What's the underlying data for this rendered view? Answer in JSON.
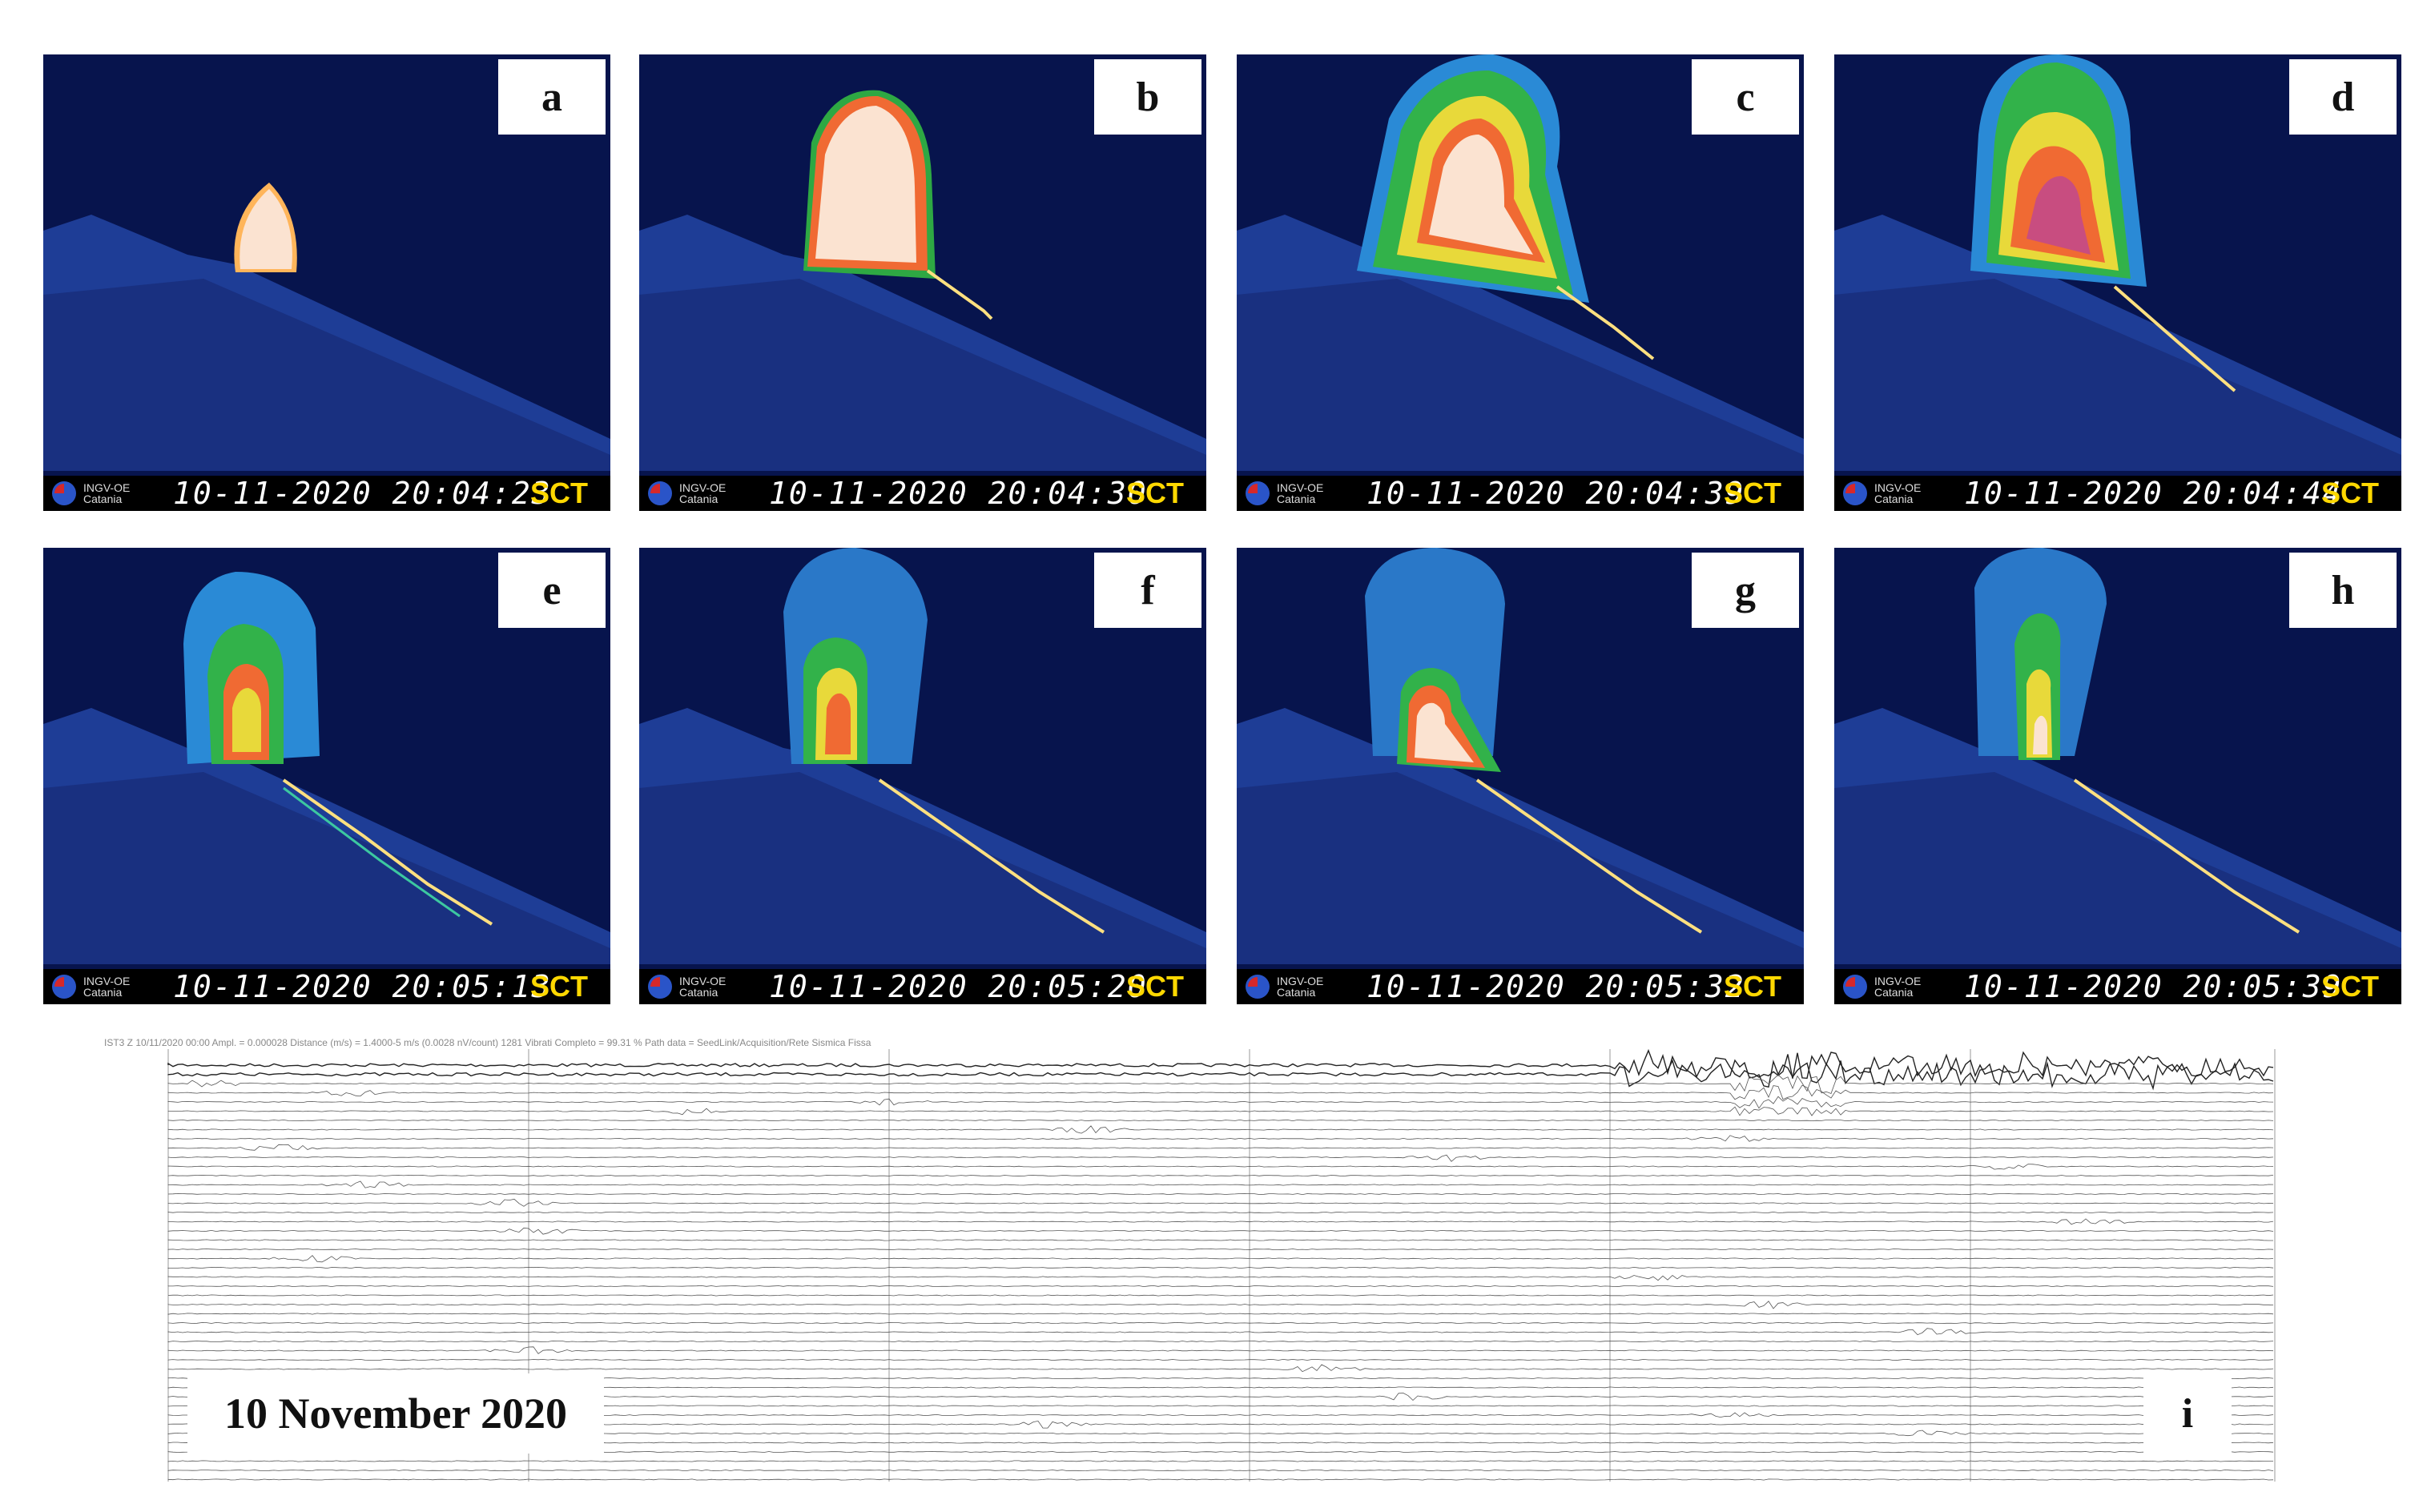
{
  "panels": [
    {
      "label": "a",
      "org_line1": "INGV-OE",
      "org_line2": "Catania",
      "timestamp": "10-11-2020 20:04:23",
      "camera": "SCT"
    },
    {
      "label": "b",
      "org_line1": "INGV-OE",
      "org_line2": "Catania",
      "timestamp": "10-11-2020 20:04:30",
      "camera": "SCT"
    },
    {
      "label": "c",
      "org_line1": "INGV-OE",
      "org_line2": "Catania",
      "timestamp": "10-11-2020 20:04:39",
      "camera": "SCT"
    },
    {
      "label": "d",
      "org_line1": "INGV-OE",
      "org_line2": "Catania",
      "timestamp": "10-11-2020 20:04:44",
      "camera": "SCT"
    },
    {
      "label": "e",
      "org_line1": "INGV-OE",
      "org_line2": "Catania",
      "timestamp": "10-11-2020 20:05:13",
      "camera": "SCT"
    },
    {
      "label": "f",
      "org_line1": "INGV-OE",
      "org_line2": "Catania",
      "timestamp": "10-11-2020 20:05:20",
      "camera": "SCT"
    },
    {
      "label": "g",
      "org_line1": "INGV-OE",
      "org_line2": "Catania",
      "timestamp": "10-11-2020 20:05:32",
      "camera": "SCT"
    },
    {
      "label": "h",
      "org_line1": "INGV-OE",
      "org_line2": "Catania",
      "timestamp": "10-11-2020 20:05:39",
      "camera": "SCT"
    }
  ],
  "seismogram": {
    "header_text": "IST3 Z 10/11/2020 00:00 Ampl. = 0.000028 Distance (m/s) = 1.4000-5 m/s (0.0028 nV/count) 1281 Vibrati Completo = 99.31 % Path data = SeedLink/Acquisition/Rete Sismica Fissa",
    "date_label": "10 November 2020",
    "panel_label": "i"
  },
  "colors": {
    "sky": "#07144d",
    "slope": "#1f3f9a",
    "hot_core": "#fbe3d1",
    "label_bg": "#ffffff",
    "timestamp_bar": "#000000",
    "camera_code": "#ffd800"
  }
}
